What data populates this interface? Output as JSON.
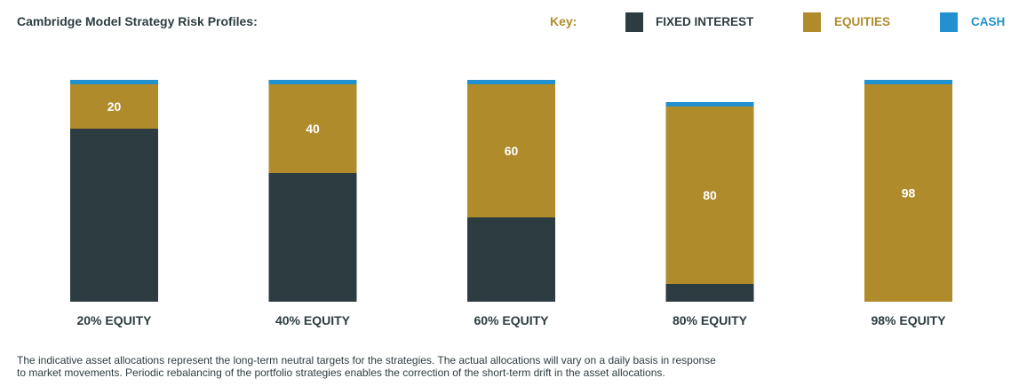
{
  "title": "Cambridge Model Strategy Risk Profiles:",
  "key_label": "Key:",
  "colors": {
    "fixed_interest": "#2d3c40",
    "equities": "#af8b2b",
    "cash": "#2191cf",
    "text": "#2d3c40",
    "key_text": "#af8b2b"
  },
  "legend": [
    {
      "name": "FIXED INTEREST",
      "color": "#2d3c40"
    },
    {
      "name": "EQUITIES",
      "color": "#af8b2b"
    },
    {
      "name": "CASH",
      "color": "#2191cf"
    }
  ],
  "chart_data": {
    "type": "bar",
    "stacked": true,
    "categories": [
      "20% EQUITY",
      "40% EQUITY",
      "60% EQUITY",
      "80% EQUITY",
      "98% EQUITY"
    ],
    "series": [
      {
        "name": "FIXED INTEREST",
        "values": [
          78,
          58,
          38,
          8,
          0
        ]
      },
      {
        "name": "EQUITIES",
        "values": [
          20,
          40,
          60,
          80,
          98
        ]
      },
      {
        "name": "CASH",
        "values": [
          2,
          2,
          2,
          2,
          2
        ]
      }
    ],
    "data_labels": [
      "20",
      "40",
      "60",
      "80",
      "98"
    ],
    "ylim": [
      0,
      100
    ],
    "grid": false,
    "legend_position": "top-right"
  },
  "footnote": [
    "The indicative asset allocations represent the long-term neutral targets for the strategies. The actual allocations will vary on a daily basis in response",
    "to market movements. Periodic rebalancing of the portfolio strategies enables the correction of the short-term drift in the asset allocations."
  ]
}
